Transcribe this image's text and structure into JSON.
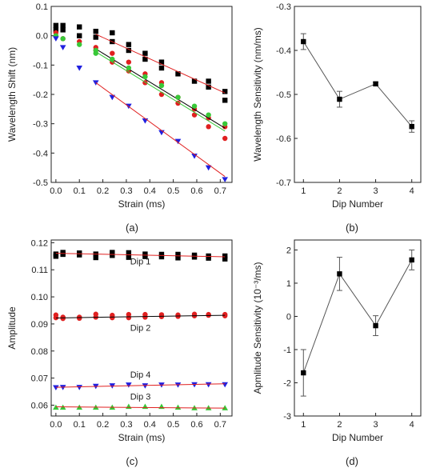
{
  "chart_data": [
    {
      "type": "scatter",
      "panel_label": "(a)",
      "xlabel": "Strain (ms)",
      "ylabel": "Wavelength Shift (nm)",
      "xlim": [
        -0.02,
        0.75
      ],
      "ylim": [
        -0.5,
        0.1
      ],
      "xticks": [
        "0.0",
        "0.1",
        "0.2",
        "0.3",
        "0.4",
        "0.5",
        "0.6",
        "0.7"
      ],
      "xtick_values": [
        0,
        0.1,
        0.2,
        0.3,
        0.4,
        0.5,
        0.6,
        0.7
      ],
      "yticks": [
        "0.1",
        "0.0",
        "-0.1",
        "-0.2",
        "-0.3",
        "-0.4",
        "-0.5"
      ],
      "ytick_values": [
        0.1,
        0,
        -0.1,
        -0.2,
        -0.3,
        -0.4,
        -0.5
      ],
      "series": [
        {
          "marker": "square",
          "color": "#000000",
          "x": [
            0.0,
            0.0,
            0.03,
            0.03,
            0.1,
            0.1,
            0.17,
            0.17,
            0.24,
            0.24,
            0.31,
            0.31,
            0.38,
            0.38,
            0.45,
            0.45,
            0.52,
            0.59,
            0.65,
            0.65,
            0.72,
            0.72
          ],
          "y": [
            0.035,
            0.02,
            0.035,
            0.02,
            0.03,
            0.0,
            0.015,
            -0.005,
            0.01,
            -0.02,
            -0.03,
            -0.05,
            -0.06,
            -0.08,
            -0.09,
            -0.11,
            -0.13,
            -0.155,
            -0.155,
            -0.175,
            -0.19,
            -0.22
          ],
          "fit": {
            "x": [
              0.17,
              0.72
            ],
            "y": [
              0.005,
              -0.195
            ],
            "color": "#e02020"
          }
        },
        {
          "marker": "circle",
          "color": "#e02020",
          "x": [
            0.0,
            0.03,
            0.1,
            0.17,
            0.17,
            0.24,
            0.24,
            0.31,
            0.31,
            0.38,
            0.38,
            0.45,
            0.45,
            0.52,
            0.52,
            0.59,
            0.59,
            0.65,
            0.65,
            0.72,
            0.72
          ],
          "y": [
            0.01,
            -0.01,
            -0.02,
            -0.04,
            -0.05,
            -0.06,
            -0.09,
            -0.09,
            -0.12,
            -0.13,
            -0.16,
            -0.16,
            -0.2,
            -0.21,
            -0.23,
            -0.25,
            -0.27,
            -0.28,
            -0.31,
            -0.31,
            -0.35
          ],
          "fit": {
            "x": [
              0.17,
              0.72
            ],
            "y": [
              -0.045,
              -0.315
            ],
            "color": "#000000"
          }
        },
        {
          "marker": "circle",
          "color": "#38c838",
          "x": [
            0.0,
            0.03,
            0.1,
            0.17,
            0.17,
            0.24,
            0.31,
            0.38,
            0.45,
            0.52,
            0.59,
            0.65,
            0.72
          ],
          "y": [
            0.0,
            -0.01,
            -0.03,
            -0.05,
            -0.06,
            -0.08,
            -0.11,
            -0.14,
            -0.17,
            -0.21,
            -0.24,
            -0.27,
            -0.3
          ],
          "fit": {
            "x": [
              0.17,
              0.72
            ],
            "y": [
              -0.055,
              -0.325
            ],
            "color": "#38c838"
          }
        },
        {
          "marker": "triangle-down",
          "color": "#2020e0",
          "x": [
            0.0,
            0.03,
            0.1,
            0.17,
            0.24,
            0.31,
            0.38,
            0.45,
            0.52,
            0.59,
            0.65,
            0.72
          ],
          "y": [
            -0.01,
            -0.04,
            -0.11,
            -0.16,
            -0.21,
            -0.24,
            -0.29,
            -0.33,
            -0.36,
            -0.41,
            -0.45,
            -0.49
          ],
          "fit": {
            "x": [
              0.17,
              0.72
            ],
            "y": [
              -0.16,
              -0.48
            ],
            "color": "#e02020"
          }
        }
      ]
    },
    {
      "type": "line",
      "panel_label": "(b)",
      "xlabel": "Dip Number",
      "ylabel": "Wavelength Sensitivity (nm/ms)",
      "xlim": [
        0.75,
        4.25
      ],
      "ylim": [
        -0.7,
        -0.3
      ],
      "xticks": [
        "1",
        "2",
        "3",
        "4"
      ],
      "xtick_values": [
        1,
        2,
        3,
        4
      ],
      "yticks": [
        "-0.3",
        "-0.4",
        "-0.5",
        "-0.6",
        "-0.7"
      ],
      "ytick_values": [
        -0.3,
        -0.4,
        -0.5,
        -0.6,
        -0.7
      ],
      "x": [
        1,
        2,
        3,
        4
      ],
      "y": [
        -0.38,
        -0.511,
        -0.476,
        -0.573
      ],
      "error": [
        0.018,
        0.018,
        0.004,
        0.013
      ]
    },
    {
      "type": "scatter",
      "panel_label": "(c)",
      "xlabel": "Strain (ms)",
      "ylabel": "Amplitude",
      "xlim": [
        -0.02,
        0.75
      ],
      "ylim": [
        0.056,
        0.121
      ],
      "xticks": [
        "0.0",
        "0.1",
        "0.2",
        "0.3",
        "0.4",
        "0.5",
        "0.6",
        "0.7"
      ],
      "xtick_values": [
        0,
        0.1,
        0.2,
        0.3,
        0.4,
        0.5,
        0.6,
        0.7
      ],
      "yticks": [
        "0.12",
        "0.11",
        "0.10",
        "0.09",
        "0.08",
        "0.07",
        "0.06"
      ],
      "ytick_values": [
        0.12,
        0.11,
        0.1,
        0.09,
        0.08,
        0.07,
        0.06
      ],
      "series": [
        {
          "label": "Dip 1",
          "label_x": 0.36,
          "label_y": 0.112,
          "marker": "square",
          "color": "#000000",
          "x": [
            0.0,
            0.0,
            0.03,
            0.03,
            0.1,
            0.1,
            0.17,
            0.17,
            0.24,
            0.24,
            0.31,
            0.31,
            0.38,
            0.38,
            0.45,
            0.45,
            0.52,
            0.52,
            0.59,
            0.59,
            0.65,
            0.65,
            0.72,
            0.72
          ],
          "y": [
            0.1158,
            0.115,
            0.1164,
            0.1157,
            0.1162,
            0.1155,
            0.1158,
            0.1145,
            0.1164,
            0.1153,
            0.1163,
            0.1146,
            0.1158,
            0.1149,
            0.1157,
            0.1148,
            0.1157,
            0.1144,
            0.1154,
            0.1147,
            0.1151,
            0.1143,
            0.1151,
            0.114
          ],
          "fit": {
            "x": [
              0.0,
              0.72
            ],
            "y": [
              0.1161,
              0.1148
            ],
            "color": "#e02020"
          }
        },
        {
          "label": "Dip 2",
          "label_x": 0.36,
          "label_y": 0.0875,
          "marker": "circle",
          "color": "#e02020",
          "x": [
            0.0,
            0.0,
            0.03,
            0.03,
            0.1,
            0.1,
            0.17,
            0.17,
            0.24,
            0.24,
            0.31,
            0.31,
            0.38,
            0.38,
            0.45,
            0.45,
            0.52,
            0.52,
            0.59,
            0.59,
            0.65,
            0.65,
            0.72,
            0.72
          ],
          "y": [
            0.0933,
            0.0923,
            0.0925,
            0.092,
            0.0925,
            0.0921,
            0.0936,
            0.0925,
            0.0932,
            0.0923,
            0.0935,
            0.0923,
            0.0935,
            0.0925,
            0.0934,
            0.0927,
            0.0933,
            0.0928,
            0.0936,
            0.093,
            0.0935,
            0.0932,
            0.0935,
            0.093
          ],
          "fit": {
            "x": [
              0.0,
              0.72
            ],
            "y": [
              0.0922,
              0.0932
            ],
            "color": "#000000"
          }
        },
        {
          "label": "Dip 4",
          "label_x": 0.36,
          "label_y": 0.0702,
          "marker": "triangle-down",
          "color": "#2020e0",
          "x": [
            0.0,
            0.03,
            0.1,
            0.17,
            0.24,
            0.31,
            0.38,
            0.45,
            0.52,
            0.59,
            0.65,
            0.72
          ],
          "y": [
            0.0665,
            0.0666,
            0.0666,
            0.067,
            0.0672,
            0.0675,
            0.0672,
            0.0675,
            0.0675,
            0.0676,
            0.0676,
            0.0676
          ],
          "fit": {
            "x": [
              0.0,
              0.72
            ],
            "y": [
              0.0666,
              0.0679
            ],
            "color": "#e02020"
          }
        },
        {
          "label": "Dip 3",
          "label_x": 0.36,
          "label_y": 0.0621,
          "marker": "triangle-up",
          "color": "#38c838",
          "x": [
            0.0,
            0.03,
            0.1,
            0.17,
            0.24,
            0.31,
            0.38,
            0.45,
            0.52,
            0.59,
            0.65,
            0.72
          ],
          "y": [
            0.0592,
            0.0592,
            0.0592,
            0.0592,
            0.0592,
            0.0595,
            0.0595,
            0.0595,
            0.0592,
            0.059,
            0.059,
            0.059
          ],
          "fit": {
            "x": [
              0.0,
              0.72
            ],
            "y": [
              0.0594,
              0.0589
            ],
            "color": "#e02020"
          }
        }
      ]
    },
    {
      "type": "line",
      "panel_label": "(d)",
      "xlabel": "Dip Number",
      "ylabel": "Apmlitude Sensitivity (10⁻³/ms)",
      "xlim": [
        0.75,
        4.25
      ],
      "ylim": [
        -3,
        2.3
      ],
      "xticks": [
        "1",
        "2",
        "3",
        "4"
      ],
      "xtick_values": [
        1,
        2,
        3,
        4
      ],
      "yticks": [
        "2",
        "1",
        "0",
        "-1",
        "-2",
        "-3"
      ],
      "ytick_values": [
        2,
        1,
        0,
        -1,
        -2,
        -3
      ],
      "x": [
        1,
        2,
        3,
        4
      ],
      "y": [
        -1.7,
        1.28,
        -0.28,
        1.7
      ],
      "error": [
        0.7,
        0.5,
        0.3,
        0.3
      ]
    }
  ]
}
